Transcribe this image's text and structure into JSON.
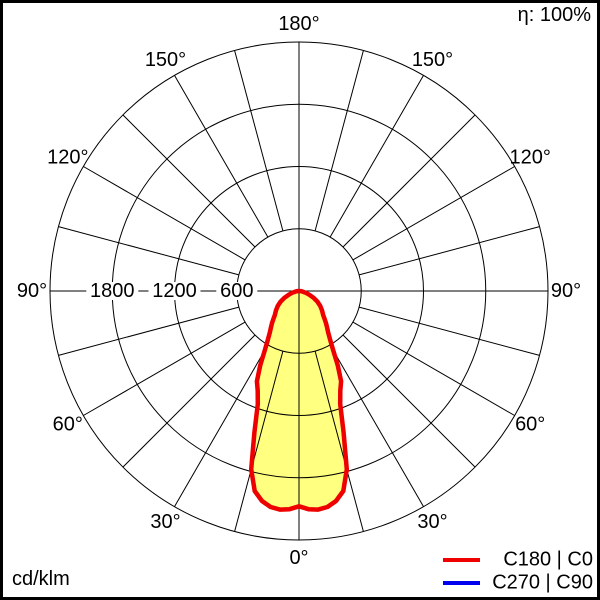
{
  "header": {
    "efficiency_label": "η: 100%"
  },
  "footer": {
    "unit_label": "cd/klm"
  },
  "legend": {
    "items": [
      {
        "label": "C180 | C0",
        "color": "#ee0000"
      },
      {
        "label": "C270 | C90",
        "color": "#0000ee"
      }
    ]
  },
  "chart_data": {
    "type": "polar",
    "subtype": "luminous-intensity-distribution",
    "unit": "cd/klm",
    "efficiency_percent": 100,
    "r_max": 2400,
    "ring_step": 600,
    "spoke_step_deg": 15,
    "radial_ticks": [
      600,
      1200,
      1800
    ],
    "radial_tick_labels": [
      "600",
      "1200",
      "1800"
    ],
    "angle_label_degs": [
      0,
      30,
      60,
      90,
      120,
      150,
      180
    ],
    "angle_labels": [
      "0°",
      "30°",
      "60°",
      "90°",
      "120°",
      "150°",
      "180°"
    ],
    "grid_color": "#000000",
    "background_color": "#ffffff",
    "series": [
      {
        "name": "C180 | C0",
        "color": "#ee0000",
        "fill_color": "#ffff80",
        "stroke_width": 4.5,
        "gamma_deg": [
          0,
          2.5,
          5,
          7.5,
          10,
          12.5,
          15,
          17.5,
          20,
          22.5,
          25,
          27.5,
          30,
          32.5,
          35,
          37.5,
          40,
          42.5,
          45,
          50,
          55,
          60,
          65,
          70,
          75,
          80,
          85,
          90
        ],
        "values": [
          2075,
          2105,
          2115,
          2100,
          2055,
          1975,
          1780,
          1430,
          1160,
          1040,
          960,
          810,
          660,
          560,
          490,
          445,
          405,
          365,
          330,
          290,
          250,
          205,
          155,
          105,
          65,
          35,
          15,
          0
        ]
      },
      {
        "name": "C270 | C90",
        "color": "#0000ee",
        "fill_color": "none",
        "stroke_width": 4,
        "gamma_deg": [],
        "values": []
      }
    ]
  }
}
